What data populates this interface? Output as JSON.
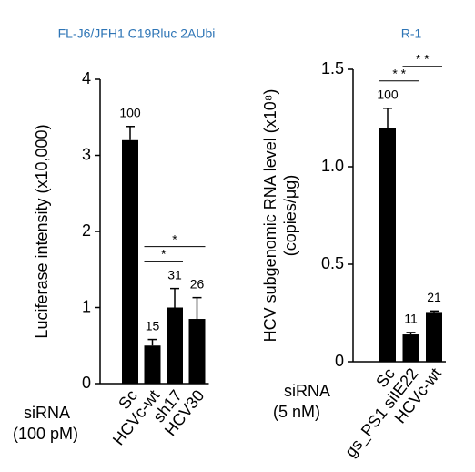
{
  "chart_data": [
    {
      "type": "bar",
      "title": "FL-J6/JFH1 C19Rluc 2AUbi",
      "ylabel": [
        "Luciferase intensity (x10,000)"
      ],
      "x_label_lines": [
        "siRNA",
        "(100 pM)"
      ],
      "categories": [
        "Sc",
        "HCVc-wt",
        "sh17",
        "HCV30"
      ],
      "values": [
        3.2,
        0.5,
        1.0,
        0.85
      ],
      "errors": [
        0.18,
        0.08,
        0.25,
        0.28
      ],
      "relative_values": [
        100,
        15,
        31,
        26
      ],
      "color": "#000000",
      "ylim": [
        0,
        4
      ],
      "yticks": [
        0,
        1,
        2,
        3,
        4
      ],
      "significance": [
        {
          "text": "*",
          "from": "HCVc-wt",
          "to": "sh17"
        },
        {
          "text": "*",
          "from": "HCVc-wt",
          "to": "HCV30"
        }
      ]
    },
    {
      "type": "bar",
      "title": "R-1",
      "ylabel": [
        "HCV subgenomic RNA level (x10⁸)",
        "(copies/μg)"
      ],
      "x_label_lines": [
        "siRNA",
        "(5 nM)"
      ],
      "categories": [
        "Sc",
        "gs_PS1 siIE22",
        "HCVc-wt"
      ],
      "values": [
        1.2,
        0.14,
        0.255
      ],
      "errors": [
        0.1,
        0.01,
        0.005
      ],
      "relative_values": [
        100,
        11,
        21
      ],
      "color": "#000000",
      "ylim": [
        0,
        1.5
      ],
      "yticks": [
        0,
        0.5,
        {
          "value": 1.0,
          "label": "1.0"
        },
        1.5
      ],
      "significance": [
        {
          "text": "* *",
          "from": "Sc",
          "to": "gs_PS1 siIE22"
        },
        {
          "text": "* *",
          "from": "gs_PS1 siIE22",
          "to": "HCVc-wt"
        }
      ]
    }
  ]
}
